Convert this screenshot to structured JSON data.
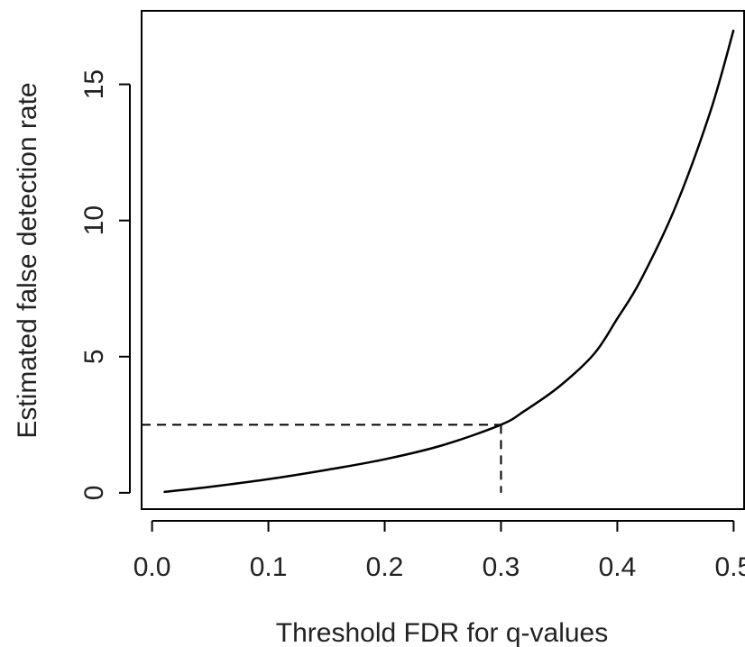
{
  "chart_data": {
    "type": "line",
    "xlabel": "Threshold FDR for q-values",
    "ylabel": "Estimated false detection rate",
    "xlim": [
      -0.009,
      0.509
    ],
    "ylim": [
      -0.6,
      17.7
    ],
    "x_ticks": [
      0.0,
      0.1,
      0.2,
      0.3,
      0.4,
      0.5
    ],
    "x_tick_labels": [
      "0.0",
      "0.1",
      "0.2",
      "0.3",
      "0.4",
      "0.5"
    ],
    "y_ticks": [
      0,
      5,
      10,
      15
    ],
    "y_tick_labels": [
      "0",
      "5",
      "10",
      "15"
    ],
    "grid": false,
    "series": [
      {
        "style": "solid",
        "color": "#000000",
        "x": [
          0.01,
          0.05,
          0.1,
          0.15,
          0.2,
          0.25,
          0.3,
          0.32,
          0.35,
          0.38,
          0.4,
          0.42,
          0.45,
          0.48,
          0.5
        ],
        "y": [
          0.03,
          0.22,
          0.5,
          0.84,
          1.23,
          1.75,
          2.5,
          3.0,
          3.9,
          5.1,
          6.4,
          7.8,
          10.5,
          14.0,
          17.0
        ]
      }
    ],
    "reference_lines": [
      {
        "style": "dashed",
        "x": [
          -0.009,
          0.3
        ],
        "y": [
          2.5,
          2.5
        ]
      },
      {
        "style": "dashed",
        "x": [
          0.3,
          0.3
        ],
        "y": [
          2.5,
          0.0
        ]
      }
    ]
  }
}
